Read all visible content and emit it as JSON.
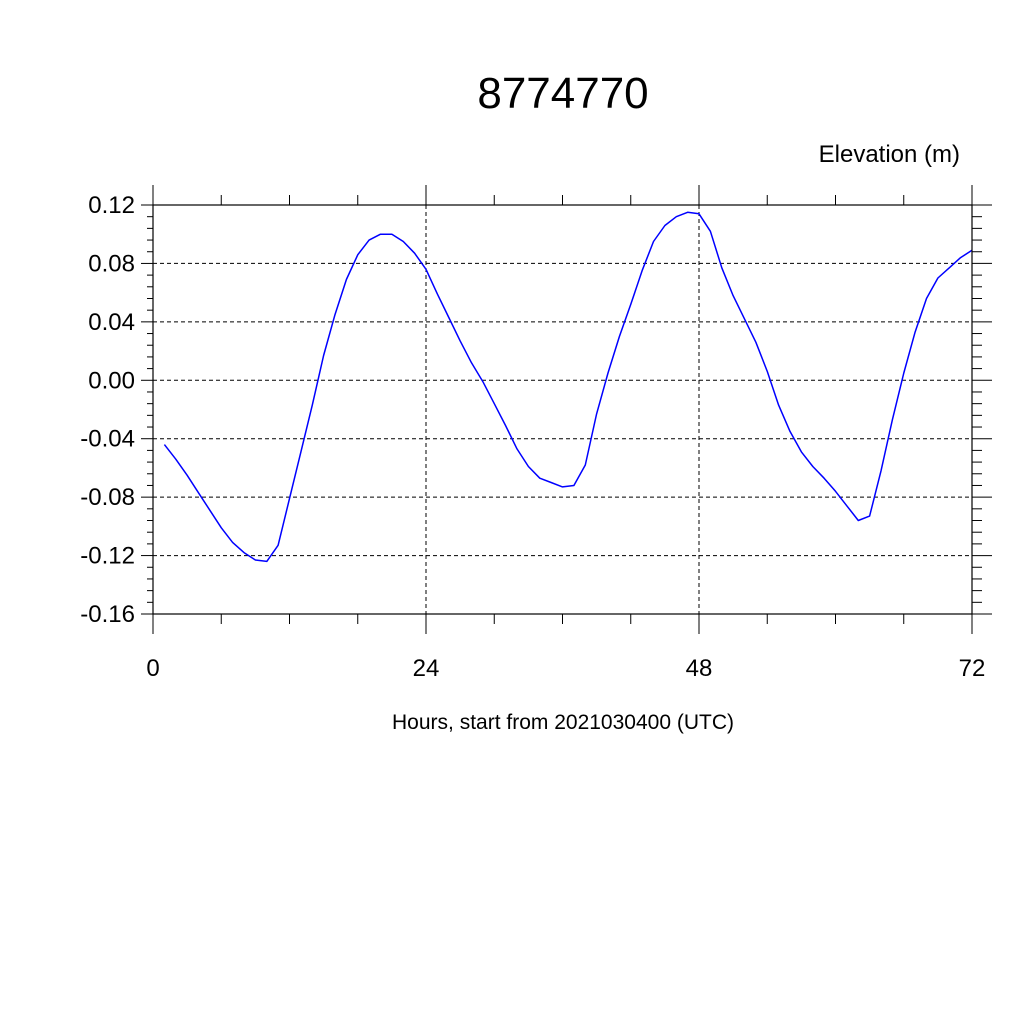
{
  "chart_data": {
    "type": "line",
    "title": "8774770",
    "ylabel": "Elevation (m)",
    "xlabel": "Hours, start from 2021030400 (UTC)",
    "xlim": [
      0,
      72
    ],
    "ylim": [
      -0.16,
      0.12
    ],
    "xticks": [
      0,
      24,
      48,
      72
    ],
    "xtick_labels": [
      "0",
      "24",
      "48",
      "72"
    ],
    "yticks": [
      -0.16,
      -0.12,
      -0.08,
      -0.04,
      0.0,
      0.04,
      0.08,
      0.12
    ],
    "ytick_labels": [
      "-0.16",
      "-0.12",
      "-0.08",
      "-0.04",
      "0.00",
      "0.04",
      "0.08",
      "0.12"
    ],
    "grid": true,
    "line_color": "#0000ff",
    "series": [
      {
        "x": [
          1,
          2,
          3,
          4,
          5,
          6,
          7,
          8,
          9,
          10,
          11,
          12,
          13,
          14,
          15,
          16,
          17,
          18,
          19,
          20,
          21,
          22,
          23,
          24,
          25,
          26,
          27,
          28,
          29,
          30,
          31,
          32,
          33,
          34,
          35,
          36,
          37,
          38,
          39,
          40,
          41,
          42,
          43,
          44,
          45,
          46,
          47,
          48,
          49,
          50,
          51,
          52,
          53,
          54,
          55,
          56,
          57,
          58,
          59,
          60,
          61,
          62,
          63,
          64,
          65,
          66,
          67,
          68,
          69,
          70,
          71,
          72
        ],
        "values": [
          -0.044,
          -0.054,
          -0.065,
          -0.077,
          -0.089,
          -0.101,
          -0.111,
          -0.118,
          -0.123,
          -0.124,
          -0.113,
          -0.081,
          -0.049,
          -0.017,
          0.017,
          0.045,
          0.069,
          0.086,
          0.096,
          0.1,
          0.1,
          0.095,
          0.087,
          0.076,
          0.059,
          0.043,
          0.027,
          0.012,
          -0.001,
          -0.016,
          -0.031,
          -0.047,
          -0.059,
          -0.067,
          -0.07,
          -0.073,
          -0.072,
          -0.058,
          -0.023,
          0.005,
          0.03,
          0.052,
          0.075,
          0.095,
          0.106,
          0.112,
          0.115,
          0.114,
          0.102,
          0.077,
          0.058,
          0.042,
          0.026,
          0.006,
          -0.017,
          -0.035,
          -0.049,
          -0.059,
          -0.067,
          -0.076,
          -0.086,
          -0.096,
          -0.093,
          -0.062,
          -0.027,
          0.005,
          0.033,
          0.056,
          0.07,
          0.077,
          0.084,
          0.089
        ]
      }
    ]
  }
}
